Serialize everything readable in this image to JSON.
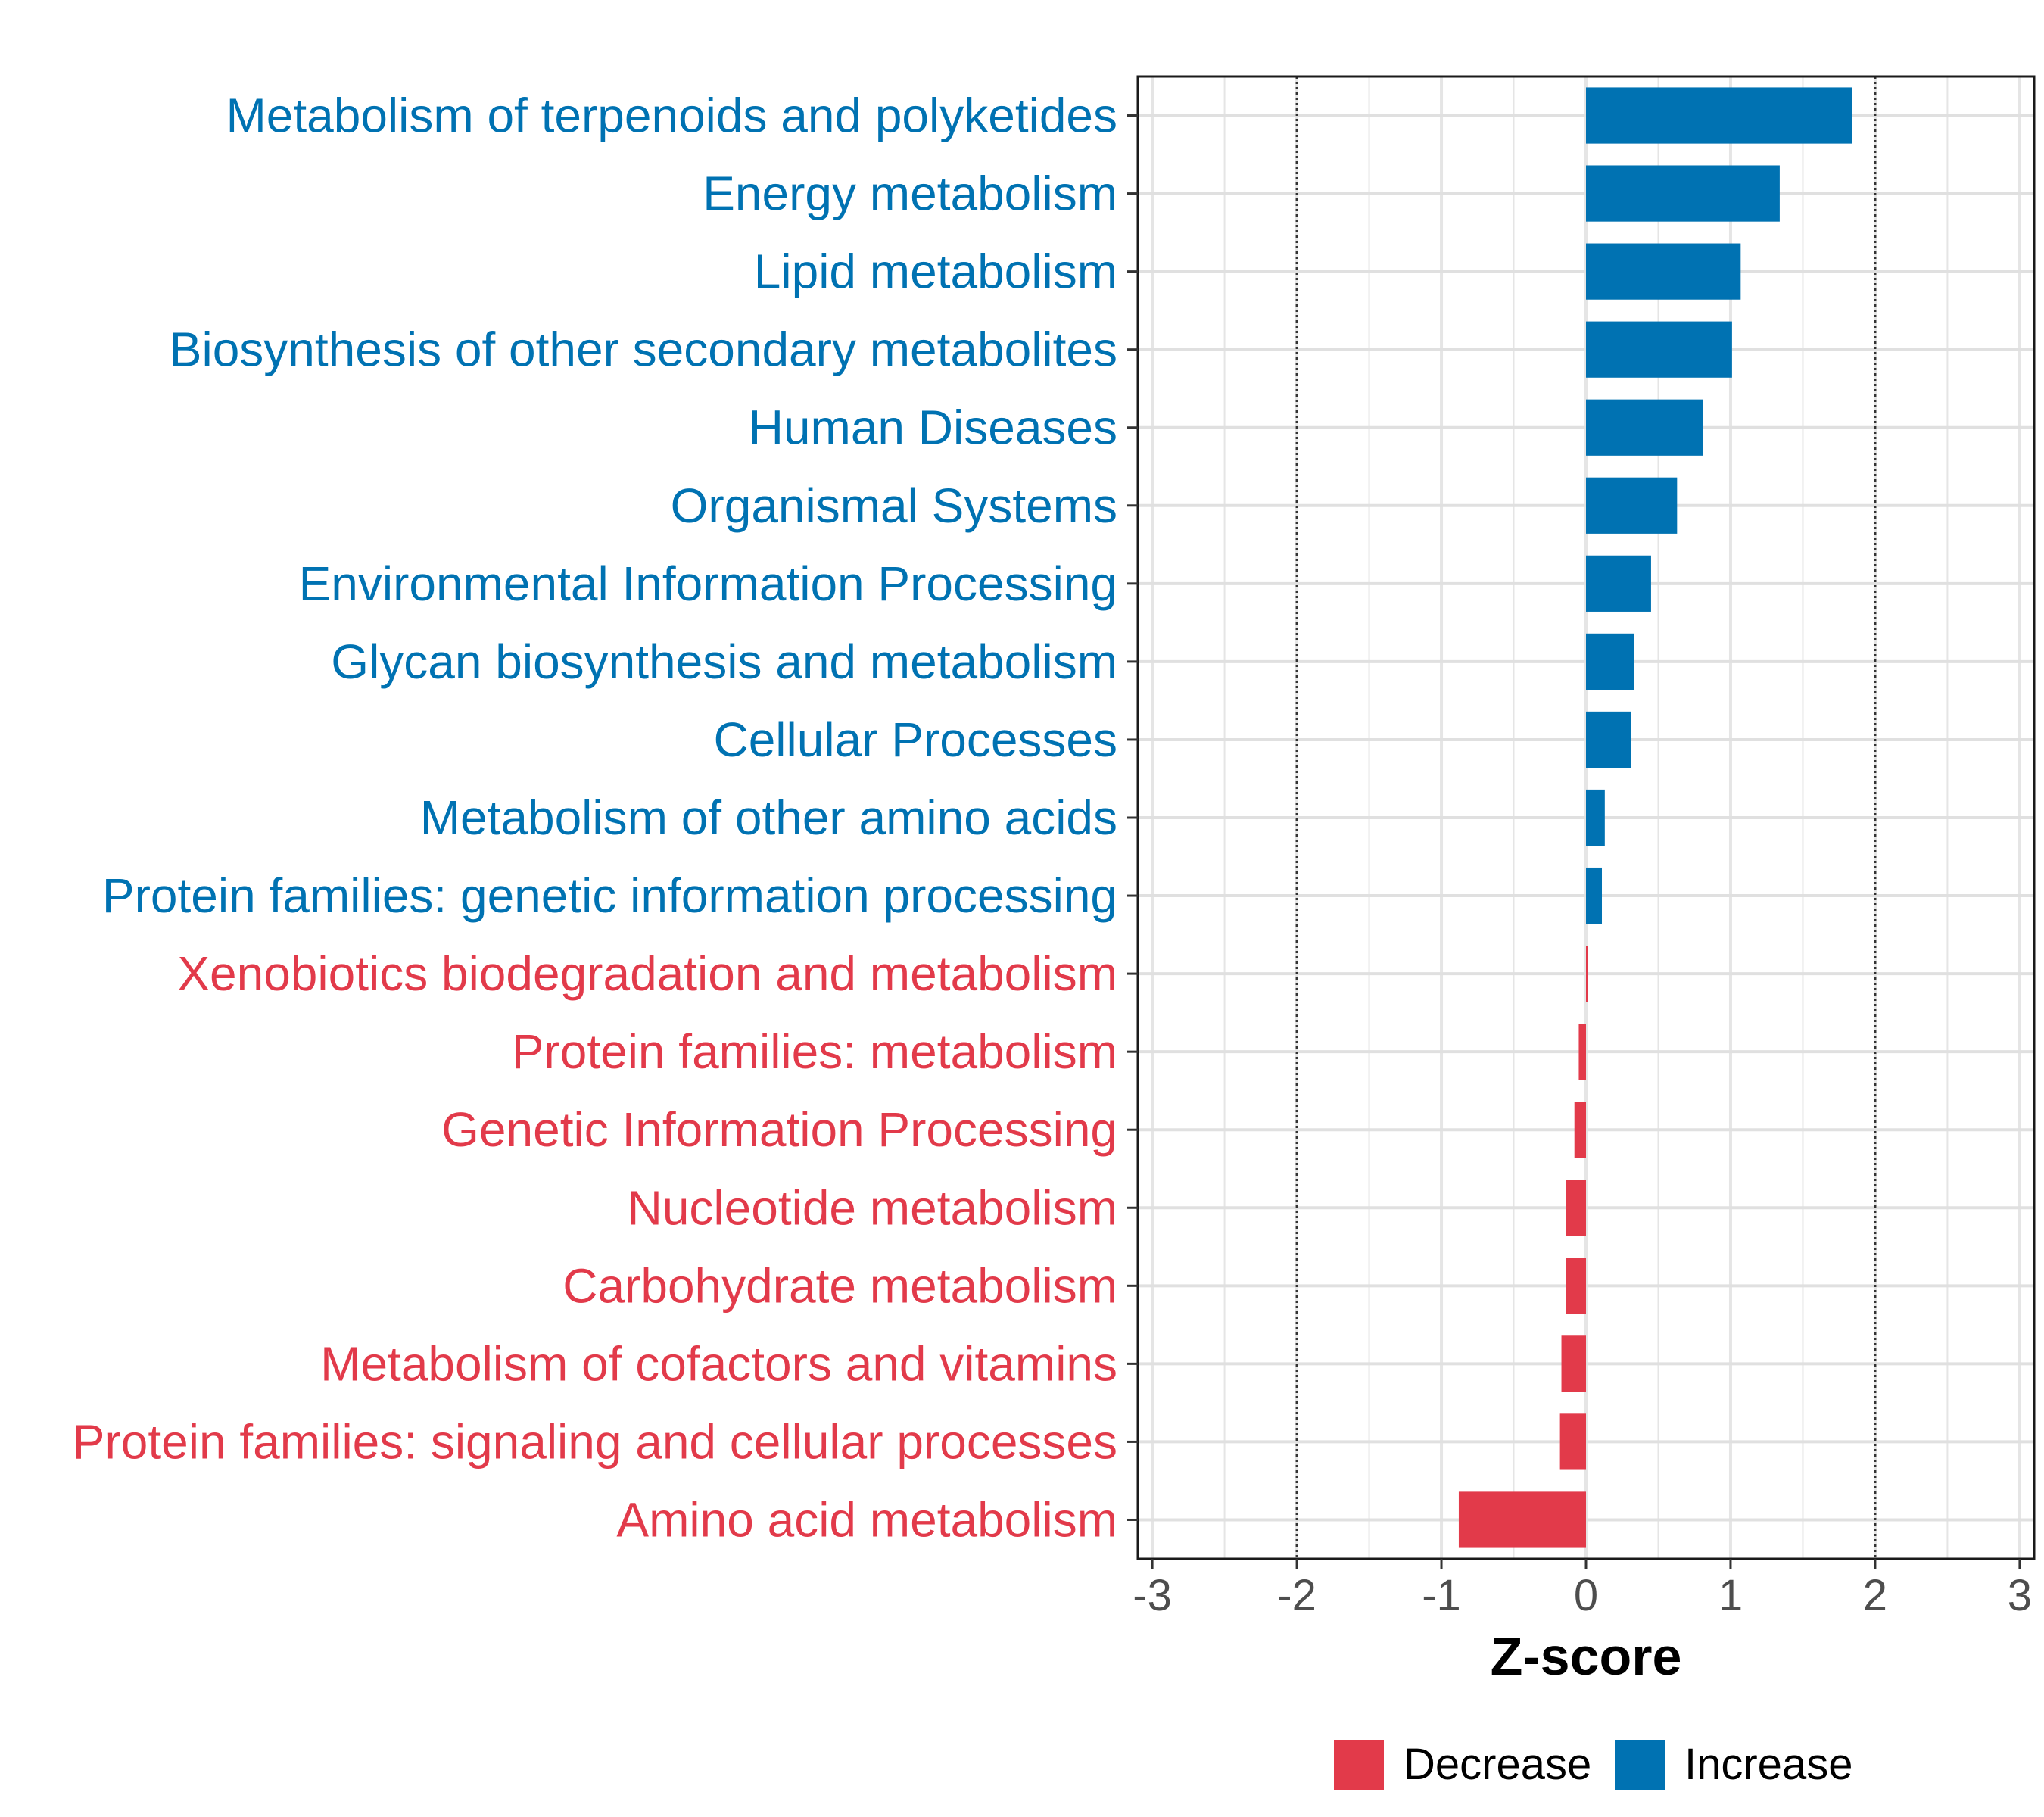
{
  "chart_data": {
    "type": "bar",
    "orientation": "horizontal",
    "xlabel": "Z-score",
    "ylabel": "",
    "xlim": [
      -3.1,
      3.1
    ],
    "xticks": [
      "-3",
      "-2",
      "-1",
      "0",
      "1",
      "2",
      "3"
    ],
    "xtick_values": [
      -3,
      -2,
      -1,
      0,
      1,
      2,
      3
    ],
    "reference_lines": [
      -2,
      2
    ],
    "grid": true,
    "colors": {
      "Increase": "#0072B2",
      "Decrease": "#E23A4A"
    },
    "categories": [
      "Metabolism of terpenoids and polyketides",
      "Energy metabolism",
      "Lipid metabolism",
      "Biosynthesis of other secondary metabolites",
      "Human Diseases",
      "Organismal Systems",
      "Environmental Information Processing",
      "Glycan biosynthesis and metabolism",
      "Cellular Processes",
      "Metabolism of other amino acids",
      "Protein families: genetic information processing",
      "Xenobiotics biodegradation and metabolism",
      "Protein families: metabolism",
      "Genetic Information Processing",
      "Nucleotide metabolism",
      "Carbohydrate metabolism",
      "Metabolism of cofactors and vitamins",
      "Protein families: signaling and cellular processes",
      "Amino acid metabolism"
    ],
    "values": [
      1.84,
      1.34,
      1.07,
      1.01,
      0.81,
      0.63,
      0.45,
      0.33,
      0.31,
      0.13,
      0.11,
      0.01,
      -0.05,
      -0.08,
      -0.14,
      -0.14,
      -0.17,
      -0.18,
      -0.88
    ],
    "groups": [
      "Increase",
      "Increase",
      "Increase",
      "Increase",
      "Increase",
      "Increase",
      "Increase",
      "Increase",
      "Increase",
      "Increase",
      "Increase",
      "Decrease",
      "Decrease",
      "Decrease",
      "Decrease",
      "Decrease",
      "Decrease",
      "Decrease",
      "Decrease"
    ],
    "legend": {
      "position": "bottom",
      "entries": [
        {
          "label": "Decrease",
          "color": "#E23A4A"
        },
        {
          "label": "Increase",
          "color": "#0072B2"
        }
      ]
    }
  }
}
